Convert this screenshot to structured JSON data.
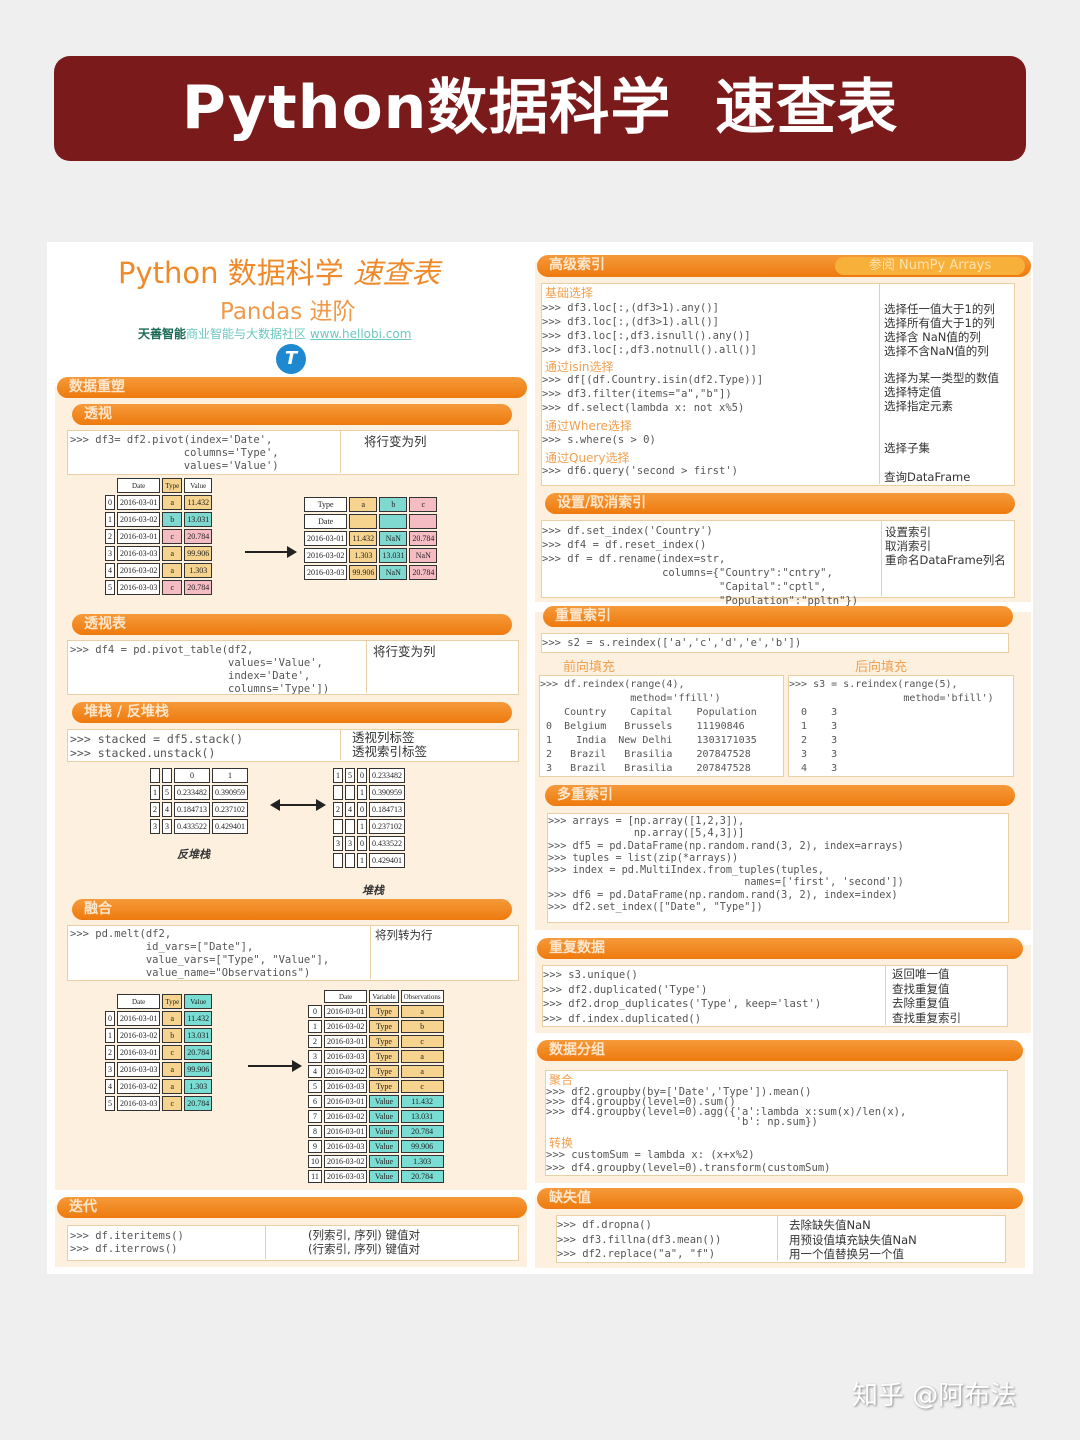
{
  "banner": {
    "title": "Python数据科学  速查表"
  },
  "sheet": {
    "title": "Python 数据科学",
    "title_italic": "速查表",
    "subtitle": "Pandas 进阶",
    "brand": "天善智能",
    "brand_tagline": "商业智能与大数据社区",
    "brand_url": "www.hellobi.com"
  },
  "colors": {
    "banner": "#7b1a1a",
    "section_bar": "#ee7a0e",
    "cream": "#fdf0df",
    "type_a": "#f6d38f",
    "type_b": "#7fd9d0",
    "type_c": "#f6bcc4",
    "value": "#79ddd4"
  },
  "reshape": {
    "title": "数据重塑",
    "pivot": {
      "title": "透视",
      "code": ">>> df3= df2.pivot(index='Date',\n                  columns='Type',\n                  values='Value')",
      "desc": "将行变为列",
      "left": {
        "header": [
          "Date",
          "Type",
          "Value"
        ],
        "rows": [
          [
            "0",
            "2016-03-01",
            "a",
            "11.432"
          ],
          [
            "1",
            "2016-03-02",
            "b",
            "13.031"
          ],
          [
            "2",
            "2016-03-01",
            "c",
            "20.784"
          ],
          [
            "3",
            "2016-03-03",
            "a",
            "99.906"
          ],
          [
            "4",
            "2016-03-02",
            "a",
            "1.303"
          ],
          [
            "5",
            "2016-03-03",
            "c",
            "20.784"
          ]
        ]
      },
      "right": {
        "header": [
          "Type",
          "a",
          "b",
          "c"
        ],
        "index_name": "Date",
        "rows": [
          [
            "2016-03-01",
            "11.432",
            "NaN",
            "20.784"
          ],
          [
            "2016-03-02",
            "1.303",
            "13.031",
            "NaN"
          ],
          [
            "2016-03-03",
            "99.906",
            "NaN",
            "20.784"
          ]
        ]
      }
    },
    "pivot_table": {
      "title": "透视表",
      "code": ">>> df4 = pd.pivot_table(df2,\n                         values='Value',\n                         index='Date',\n                         columns='Type'])",
      "desc": "将行变为列"
    },
    "stack": {
      "title": "堆栈 / 反堆栈",
      "code": ">>> stacked = df5.stack()\n>>> stacked.unstack()",
      "desc": "透视列标签\n透视索引标签",
      "unstacked": {
        "header": [
          "0",
          "1"
        ],
        "rows": [
          [
            "1",
            "5",
            "0.233482",
            "0.390959"
          ],
          [
            "2",
            "4",
            "0.184713",
            "0.237102"
          ],
          [
            "3",
            "3",
            "0.433522",
            "0.429401"
          ]
        ],
        "caption": "反堆栈"
      },
      "stacked": {
        "rows": [
          [
            "1",
            "5",
            "0",
            "0.233482"
          ],
          [
            "",
            "",
            "1",
            "0.390959"
          ],
          [
            "2",
            "4",
            "0",
            "0.184713"
          ],
          [
            "",
            "",
            "1",
            "0.237102"
          ],
          [
            "3",
            "3",
            "0",
            "0.433522"
          ],
          [
            "",
            "",
            "1",
            "0.429401"
          ]
        ],
        "caption": "堆栈"
      }
    },
    "melt": {
      "title": "融合",
      "code": ">>> pd.melt(df2,\n            id_vars=[\"Date\"],\n            value_vars=[\"Type\", \"Value\"],\n            value_name=\"Observations\")",
      "desc": "将列转为行",
      "left": {
        "header": [
          "Date",
          "Type",
          "Value"
        ],
        "rows": [
          [
            "0",
            "2016-03-01",
            "a",
            "11.432"
          ],
          [
            "1",
            "2016-03-02",
            "b",
            "13.031"
          ],
          [
            "2",
            "2016-03-01",
            "c",
            "20.784"
          ],
          [
            "3",
            "2016-03-03",
            "a",
            "99.906"
          ],
          [
            "4",
            "2016-03-02",
            "a",
            "1.303"
          ],
          [
            "5",
            "2016-03-03",
            "c",
            "20.784"
          ]
        ]
      },
      "right": {
        "header": [
          "Date",
          "Variable",
          "Observations"
        ],
        "rows": [
          [
            "0",
            "2016-03-01",
            "Type",
            "a"
          ],
          [
            "1",
            "2016-03-02",
            "Type",
            "b"
          ],
          [
            "2",
            "2016-03-01",
            "Type",
            "c"
          ],
          [
            "3",
            "2016-03-03",
            "Type",
            "a"
          ],
          [
            "4",
            "2016-03-02",
            "Type",
            "a"
          ],
          [
            "5",
            "2016-03-03",
            "Type",
            "c"
          ],
          [
            "6",
            "2016-03-01",
            "Value",
            "11.432"
          ],
          [
            "7",
            "2016-03-02",
            "Value",
            "13.031"
          ],
          [
            "8",
            "2016-03-01",
            "Value",
            "20.784"
          ],
          [
            "9",
            "2016-03-03",
            "Value",
            "99.906"
          ],
          [
            "10",
            "2016-03-02",
            "Value",
            "1.303"
          ],
          [
            "11",
            "2016-03-03",
            "Value",
            "20.784"
          ]
        ]
      }
    }
  },
  "iteration": {
    "title": "迭代",
    "code": ">>> df.iteritems()\n>>> df.iterrows()",
    "desc": "(列索引, 序列) 键值对\n(行索引, 序列) 键值对"
  },
  "advanced_index": {
    "title": "高级索引",
    "link": "参阅 NumPy Arrays",
    "basic": {
      "label": "基础选择",
      "code": ">>> df3.loc[:,(df3>1).any()]\n>>> df3.loc[:,(df3>1).all()]\n>>> df3.loc[:,df3.isnull().any()]\n>>> df3.loc[:,df3.notnull().all()]",
      "desc": "选择任一值大于1的列\n选择所有值大于1的列\n选择含 NaN值的列\n选择不含NaN值的列"
    },
    "isin": {
      "label": "通过isin选择",
      "code": ">>> df[(df.Country.isin(df2.Type))]\n>>> df3.filter(items=\"a\",\"b\"])\n>>> df.select(lambda x: not x%5)",
      "desc": "选择为某一类型的数值\n选择特定值\n选择指定元素"
    },
    "where": {
      "label": "通过Where选择",
      "code": ">>> s.where(s > 0)",
      "desc": "选择子集"
    },
    "query": {
      "label": "通过Query选择",
      "code": ">>> df6.query('second > first')",
      "desc": "查询DataFrame"
    }
  },
  "set_index": {
    "title": "设置/取消索引",
    "code": ">>> df.set_index('Country')\n>>> df4 = df.reset_index()\n>>> df = df.rename(index=str,\n                   columns={\"Country\":\"cntry\",\n                            \"Capital\":\"cptl\",\n                            \"Population\":\"ppltn\"})",
    "desc": "设置索引\n取消索引\n重命名DataFrame列名"
  },
  "reindex": {
    "title": "重置索引",
    "code": ">>> s2 = s.reindex(['a','c','d','e','b'])",
    "ffill": {
      "label": "前向填充",
      "code": ">>> df.reindex(range(4),\n               method='ffill')\n    Country    Capital    Population\n 0  Belgium   Brussels    11190846\n 1    India  New Delhi    1303171035\n 2   Brazil   Brasilia    207847528\n 3   Brazil   Brasilia    207847528"
    },
    "bfill": {
      "label": "后向填充",
      "code": ">>> s3 = s.reindex(range(5),\n                   method='bfill')\n  0    3\n  1    3\n  2    3\n  3    3\n  4    3"
    }
  },
  "multiindex": {
    "title": "多重索引",
    "code": ">>> arrays = [np.array([1,2,3]),\n              np.array([5,4,3])]\n>>> df5 = pd.DataFrame(np.random.rand(3, 2), index=arrays)\n>>> tuples = list(zip(*arrays))\n>>> index = pd.MultiIndex.from_tuples(tuples,\n                                names=['first', 'second'])\n>>> df6 = pd.DataFrame(np.random.rand(3, 2), index=index)\n>>> df2.set_index([\"Date\", \"Type\"])"
  },
  "duplicates": {
    "title": "重复数据",
    "code": ">>> s3.unique()\n>>> df2.duplicated('Type')\n>>> df2.drop_duplicates('Type', keep='last')\n>>> df.index.duplicated()",
    "desc": "返回唯一值\n查找重复值\n去除重复值\n查找重复索引"
  },
  "groupby": {
    "title": "数据分组",
    "agg_label": "聚合",
    "agg_code": ">>> df2.groupby(by=['Date','Type']).mean()\n>>> df4.groupby(level=0).sum()\n>>> df4.groupby(level=0).agg({'a':lambda x:sum(x)/len(x),\n                              'b': np.sum})",
    "transform_label": "转换",
    "transform_code": ">>> customSum = lambda x: (x+x%2)\n>>> df4.groupby(level=0).transform(customSum)"
  },
  "missing": {
    "title": "缺失值",
    "code": ">>> df.dropna()\n>>> df3.fillna(df3.mean())\n>>> df2.replace(\"a\", \"f\")",
    "desc": "去除缺失值NaN\n用预设值填充缺失值NaN\n用一个值替换另一个值"
  },
  "watermark": "知乎 @阿布法"
}
